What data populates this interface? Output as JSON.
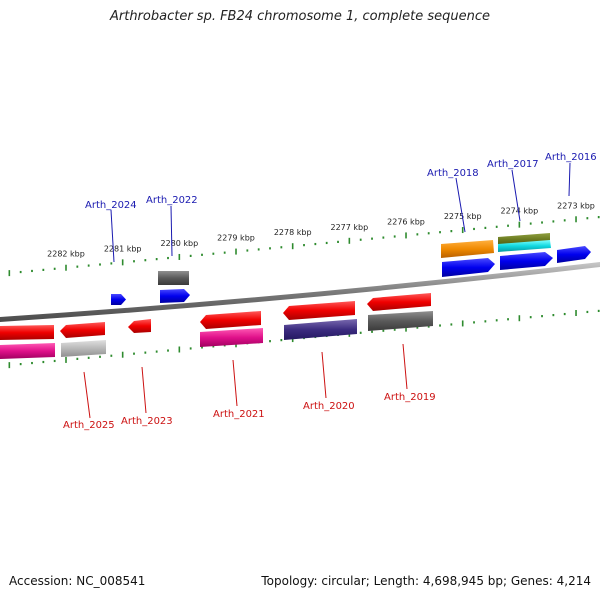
{
  "title": "Arthrobacter sp. FB24 chromosome 1, complete sequence",
  "footer": {
    "accession": "Accession: NC_008541",
    "summary": "Topology: circular; Length: 4,698,945 bp; Genes: 4,214"
  },
  "colors": {
    "backbone": "#8a8a8a",
    "tick": "#2e8b2e",
    "label_forward": "#1a1ab0",
    "label_reverse": "#cc1111"
  },
  "ticks": [
    {
      "label": "2282 kbp",
      "kbp": 2282
    },
    {
      "label": "2281 kbp",
      "kbp": 2281
    },
    {
      "label": "2280 kbp",
      "kbp": 2280
    },
    {
      "label": "2279 kbp",
      "kbp": 2279
    },
    {
      "label": "2278 kbp",
      "kbp": 2278
    },
    {
      "label": "2277 kbp",
      "kbp": 2277
    },
    {
      "label": "2276 kbp",
      "kbp": 2276
    },
    {
      "label": "2275 kbp",
      "kbp": 2275
    },
    {
      "label": "2274 kbp",
      "kbp": 2274
    },
    {
      "label": "2273 kbp",
      "kbp": 2273
    }
  ],
  "gene_labels": [
    {
      "name": "Arth_2024",
      "strand": "forward"
    },
    {
      "name": "Arth_2022",
      "strand": "forward"
    },
    {
      "name": "Arth_2018",
      "strand": "forward"
    },
    {
      "name": "Arth_2017",
      "strand": "forward"
    },
    {
      "name": "Arth_2016",
      "strand": "forward"
    },
    {
      "name": "Arth_2025",
      "strand": "reverse"
    },
    {
      "name": "Arth_2023",
      "strand": "reverse"
    },
    {
      "name": "Arth_2021",
      "strand": "reverse"
    },
    {
      "name": "Arth_2020",
      "strand": "reverse"
    },
    {
      "name": "Arth_2019",
      "strand": "reverse"
    }
  ]
}
